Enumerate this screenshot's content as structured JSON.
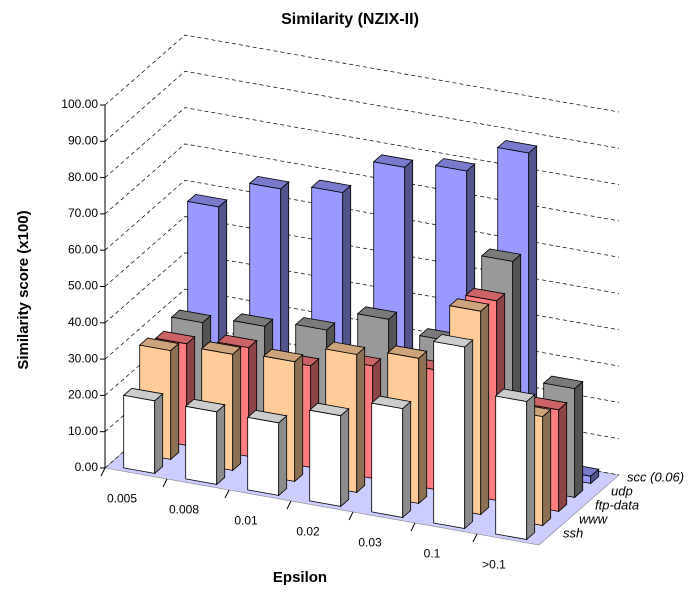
{
  "chart_data": {
    "type": "bar3d",
    "title": "Similarity (NZIX-II)",
    "x_label": "Epsilon",
    "y_label": "Similarity score (x100)",
    "categories": [
      "0.005",
      "0.008",
      "0.01",
      "0.02",
      "0.03",
      "0.1",
      ">0.1"
    ],
    "series": [
      {
        "name": "ssh",
        "color": "#ffffff",
        "values": [
          20,
          20,
          20,
          25,
          30,
          50,
          38
        ]
      },
      {
        "name": "www",
        "color": "#ffcc99",
        "values": [
          30,
          32,
          33,
          38,
          40,
          56,
          30
        ]
      },
      {
        "name": "ftp-data",
        "color": "#ff7c80",
        "values": [
          28,
          30,
          28,
          31,
          33,
          55,
          28
        ]
      },
      {
        "name": "udp",
        "color": "#999999",
        "values": [
          30,
          32,
          34,
          40,
          37,
          62,
          30
        ]
      },
      {
        "name": "scc (0.06)",
        "color": "#9999ff",
        "values": [
          58,
          66,
          68,
          78,
          80,
          88,
          2
        ]
      }
    ],
    "ylim": [
      0,
      100
    ],
    "yticks": [
      {
        "value": 0,
        "label": "0.00"
      },
      {
        "value": 10,
        "label": "10.00"
      },
      {
        "value": 20,
        "label": "20.00"
      },
      {
        "value": 30,
        "label": "30.00"
      },
      {
        "value": 40,
        "label": "40.00"
      },
      {
        "value": 50,
        "label": "50.00"
      },
      {
        "value": 60,
        "label": "60.00"
      },
      {
        "value": 70,
        "label": "70.00"
      },
      {
        "value": 80,
        "label": "80.00"
      },
      {
        "value": 90,
        "label": "90.00"
      },
      {
        "value": 100,
        "label": "100.00"
      }
    ],
    "grid": true,
    "floor_color": "#ccccff"
  }
}
